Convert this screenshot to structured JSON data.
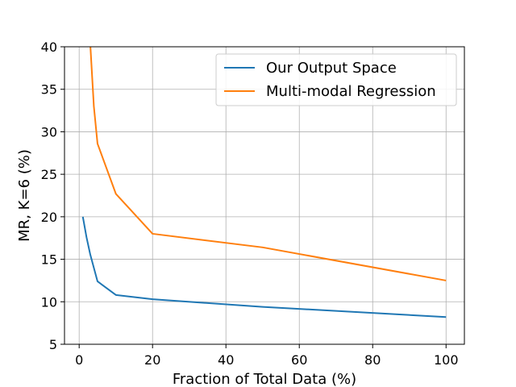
{
  "chart_data": {
    "type": "line",
    "xlabel": "Fraction of Total Data (%)",
    "ylabel": "MR, K=6 (%)",
    "xlim": [
      -4,
      105
    ],
    "ylim": [
      5,
      40
    ],
    "xticks": [
      0,
      20,
      40,
      60,
      80,
      100
    ],
    "yticks": [
      5,
      10,
      15,
      20,
      25,
      30,
      35,
      40
    ],
    "grid": true,
    "legend_position": "top-right",
    "series": [
      {
        "name": "Our Output Space",
        "color": "#1f77b4",
        "x": [
          1,
          2,
          3,
          5,
          10,
          20,
          50,
          100
        ],
        "y": [
          20.0,
          17.6,
          15.6,
          12.4,
          10.8,
          10.3,
          9.4,
          8.2
        ]
      },
      {
        "name": "Multi-modal Regression",
        "color": "#ff7f0e",
        "x": [
          3,
          4,
          5,
          10,
          20,
          50,
          100
        ],
        "y": [
          40.5,
          33.0,
          28.6,
          22.7,
          18.0,
          16.4,
          12.5
        ]
      }
    ]
  }
}
